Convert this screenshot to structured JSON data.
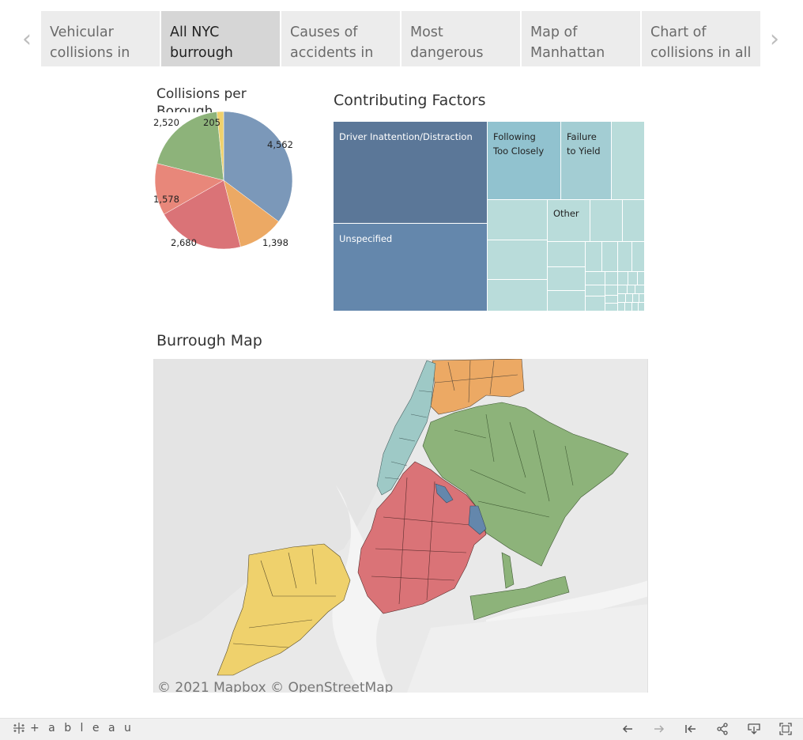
{
  "story": {
    "prev_arrow": "‹",
    "next_arrow": "›",
    "points": [
      {
        "label": "Vehicular collisions in"
      },
      {
        "label": "All NYC burrough data,"
      },
      {
        "label": "Causes of accidents in"
      },
      {
        "label": "Most dangerous"
      },
      {
        "label": "Map of Manhattan"
      },
      {
        "label": "Chart of collisions in all"
      }
    ],
    "active_index": 1
  },
  "pie_chart": {
    "title": "Collisions per Borough",
    "colors": {
      "blue": "#7b98b9",
      "orange": "#eca964",
      "red": "#da7377",
      "salmon": "#e8877a",
      "green": "#8db37a",
      "yellow": "#efd16c"
    }
  },
  "treemap": {
    "title": "Contributing Factors",
    "labels": {
      "driver_inattention": "Driver Inattention/Distraction",
      "following_line1": "Following",
      "following_line2": "Too Closely",
      "failure_line1": "Failure",
      "failure_line2": "to Yield",
      "other": "Other",
      "unspecified": "Unspecified"
    },
    "colors": {
      "dark_blue": "#5b7798",
      "mid_blue": "#6487ac",
      "teal": "#91c2cf",
      "light_teal": "#b9dcda"
    }
  },
  "map": {
    "title": "Burrough Map",
    "attribution": "© 2021 Mapbox © OpenStreetMap"
  },
  "toolbar": {
    "logo_text": "+ a b l e a u",
    "icons": [
      "undo-icon",
      "redo-icon",
      "revert-icon",
      "share-icon",
      "download-icon",
      "fullscreen-icon"
    ]
  },
  "chart_data": {
    "type": "pie",
    "title": "Collisions per Borough",
    "slices": [
      {
        "value": 4562,
        "label": "4,562",
        "color": "#7b98b9"
      },
      {
        "value": 1398,
        "label": "1,398",
        "color": "#eca964"
      },
      {
        "value": 2680,
        "label": "2,680",
        "color": "#da7377"
      },
      {
        "value": 1578,
        "label": "1,578",
        "color": "#e8877a"
      },
      {
        "value": 2520,
        "label": "2,520",
        "color": "#8db37a"
      },
      {
        "value": 205,
        "label": "205",
        "color": "#efd16c"
      }
    ]
  }
}
